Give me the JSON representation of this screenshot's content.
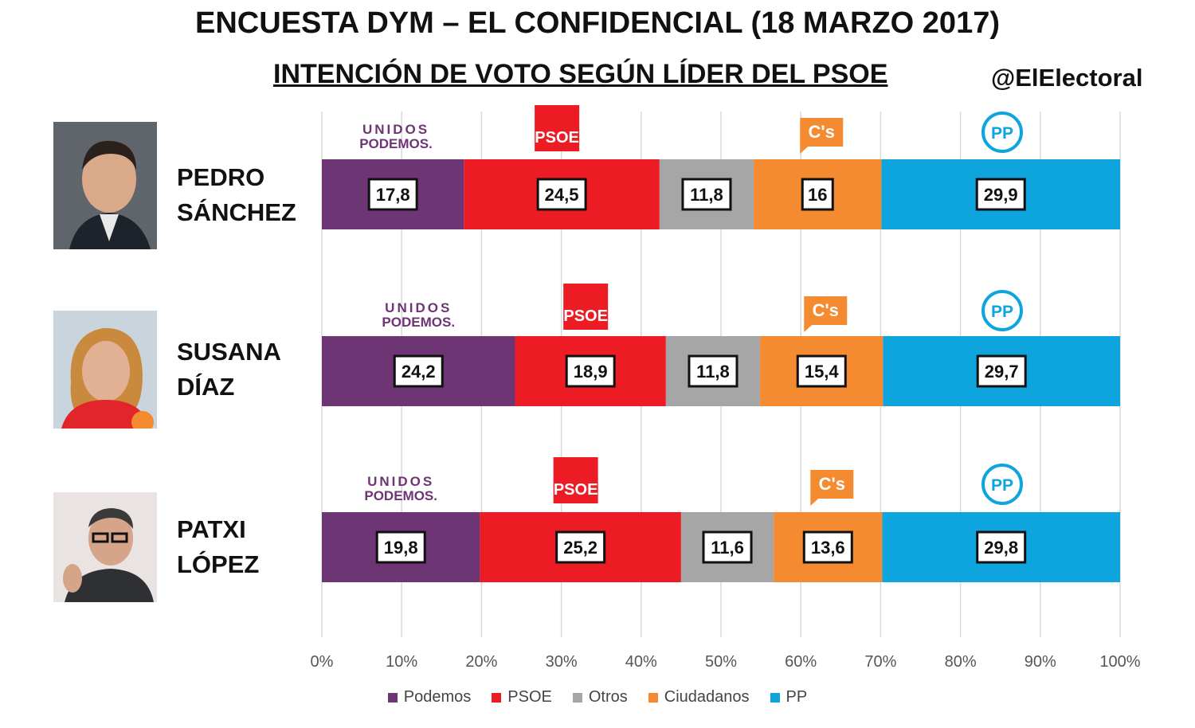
{
  "header": {
    "title": "ENCUESTA DYM – EL CONFIDENCIAL (18 MARZO 2017)",
    "subtitle": "INTENCIÓN DE VOTO SEGÚN LÍDER DEL PSOE",
    "handle": "@ElElectoral"
  },
  "leaders": [
    {
      "line1": "PEDRO",
      "line2": "SÁNCHEZ"
    },
    {
      "line1": "SUSANA",
      "line2": "DÍAZ"
    },
    {
      "line1": "PATXI",
      "line2": "LÓPEZ"
    }
  ],
  "logos": {
    "podemos_line1": "UNIDOS",
    "podemos_line2": "PODEMOS.",
    "psoe": "PSOE",
    "cs": "C's",
    "pp": "PP"
  },
  "chart_data": {
    "type": "bar",
    "orientation": "horizontal",
    "stacked": true,
    "percent_stacked": true,
    "categories": [
      "PEDRO SÁNCHEZ",
      "SUSANA DÍAZ",
      "PATXI LÓPEZ"
    ],
    "series": [
      {
        "name": "Podemos",
        "color": "#6e3574",
        "values": [
          17.8,
          24.2,
          19.8
        ],
        "labels": [
          "17,8",
          "24,2",
          "19,8"
        ]
      },
      {
        "name": "PSOE",
        "color": "#ed1c24",
        "values": [
          24.5,
          18.9,
          25.2
        ],
        "labels": [
          "24,5",
          "18,9",
          "25,2"
        ]
      },
      {
        "name": "Otros",
        "color": "#a6a6a6",
        "values": [
          11.8,
          11.8,
          11.6
        ],
        "labels": [
          "11,8",
          "11,8",
          "11,6"
        ]
      },
      {
        "name": "Ciudadanos",
        "color": "#f58b31",
        "values": [
          16,
          15.4,
          13.6
        ],
        "labels": [
          "16",
          "15,4",
          "13,6"
        ]
      },
      {
        "name": "PP",
        "color": "#0ea5df",
        "values": [
          29.9,
          29.7,
          29.8
        ],
        "labels": [
          "29,9",
          "29,7",
          "29,8"
        ]
      }
    ],
    "xlim": [
      0,
      100
    ],
    "xticks": [
      "0%",
      "10%",
      "20%",
      "30%",
      "40%",
      "50%",
      "60%",
      "70%",
      "80%",
      "90%",
      "100%"
    ],
    "grid": true,
    "legend_position": "bottom"
  }
}
